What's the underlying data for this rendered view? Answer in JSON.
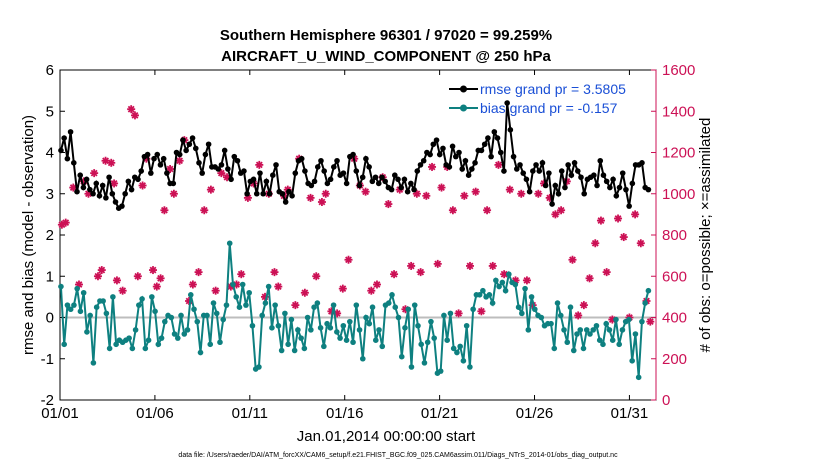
{
  "chart_data": {
    "type": "line",
    "title": "Southern Hemisphere 96301 / 97020 = 99.259%",
    "subtitle": "AIRCRAFT_U_WIND_COMPONENT @ 250 hPa",
    "xlabel": "Jan.01,2014 00:00:00 start",
    "ylabel_left": "rmse and bias (model - observation)",
    "ylabel_right": "# of obs: o=possible; ×=assimilated",
    "xlim": [
      0,
      31.4
    ],
    "ylim_left": [
      -2,
      6
    ],
    "ylim_right": [
      0,
      1600
    ],
    "x_tick_values": [
      0,
      5,
      10,
      15,
      20,
      25,
      30
    ],
    "x_tick_labels": [
      "01/01",
      "01/06",
      "01/11",
      "01/16",
      "01/21",
      "01/26",
      "01/31"
    ],
    "y_left_ticks": [
      "-2",
      "-1",
      "0",
      "1",
      "2",
      "3",
      "4",
      "5",
      "6"
    ],
    "y_right_ticks": [
      "0",
      "200",
      "400",
      "600",
      "800",
      "1000",
      "1200",
      "1400",
      "1600"
    ],
    "footer": "data file: /Users/raeder/DAI/ATM_forcXX/CAM6_setup/f.e21.FHIST_BGC.f09_025.CAM6assim.011/Diags_NTrS_2014-01/obs_diag_output.nc",
    "colors": {
      "rmse": "#000000",
      "bias": "#0e8080",
      "obs": "#cc1155",
      "zero_line": "#bdbdbd"
    },
    "series": [
      {
        "name": "rmse grand pr = 3.5805",
        "axis": "left",
        "values": [
          4.05,
          4.35,
          3.85,
          4.5,
          3.75,
          3.05,
          3.45,
          3.15,
          3.35,
          3.1,
          3.0,
          3.25,
          2.95,
          3.2,
          2.9,
          3.4,
          3.0,
          2.8,
          2.65,
          2.7,
          3.0,
          3.3,
          3.1,
          3.4,
          3.35,
          3.55,
          3.9,
          3.95,
          3.5,
          3.85,
          3.95,
          3.7,
          3.85,
          3.5,
          3.25,
          3.25,
          4.0,
          3.95,
          4.3,
          4.05,
          4.2,
          4.35,
          4.1,
          3.75,
          3.5,
          3.95,
          4.2,
          3.65,
          3.65,
          3.6,
          3.7,
          4.05,
          3.6,
          3.35,
          3.9,
          3.8,
          3.5,
          3.55,
          3.0,
          3.3,
          3.35,
          3.0,
          3.5,
          3.0,
          3.3,
          3.0,
          3.45,
          3.7,
          3.05,
          3.0,
          2.8,
          3.05,
          2.95,
          3.5,
          3.8,
          3.85,
          3.55,
          3.25,
          3.2,
          3.3,
          3.65,
          3.8,
          3.55,
          3.25,
          3.35,
          3.65,
          3.8,
          3.45,
          3.5,
          3.25,
          3.9,
          3.95,
          3.55,
          3.2,
          3.4,
          3.85,
          3.65,
          3.3,
          3.4,
          3.25,
          3.4,
          3.3,
          3.15,
          3.1,
          3.45,
          3.35,
          3.15,
          3.35,
          3.05,
          3.25,
          3.1,
          3.55,
          3.7,
          3.8,
          4.0,
          3.95,
          4.2,
          4.3,
          3.95,
          4.1,
          3.7,
          3.65,
          4.15,
          3.9,
          4.0,
          3.6,
          3.8,
          3.45,
          3.6,
          3.75,
          4.05,
          4.05,
          4.2,
          4.35,
          3.9,
          4.5,
          4.35,
          4.0,
          3.55,
          5.2,
          4.55,
          3.9,
          3.6,
          3.7,
          3.5,
          3.35,
          3.05,
          3.55,
          3.7,
          3.55,
          3.75,
          3.2,
          3.5,
          2.75,
          3.2,
          3.0,
          3.55,
          3.15,
          3.7,
          3.45,
          3.75,
          3.55,
          3.4,
          3.0,
          3.35,
          3.4,
          3.45,
          3.2,
          3.8,
          3.45,
          3.3,
          3.15,
          3.35,
          2.95,
          3.15,
          3.5,
          3.1,
          2.7,
          3.25,
          3.7,
          3.7,
          3.75,
          3.15,
          3.1
        ]
      },
      {
        "name": "bias grand pr = -0.157",
        "axis": "left",
        "values": [
          0.75,
          -0.65,
          0.3,
          0.2,
          0.3,
          0.7,
          0.15,
          0.6,
          -0.35,
          0.05,
          -1.1,
          0.25,
          0.4,
          0.4,
          0.1,
          -0.75,
          0.5,
          -0.65,
          -0.55,
          -0.6,
          -0.55,
          -0.5,
          -0.75,
          -0.3,
          0.3,
          0.45,
          -0.75,
          -0.55,
          0.5,
          0.15,
          -0.65,
          -0.5,
          -0.1,
          0.05,
          0.0,
          -0.4,
          -0.5,
          0.05,
          -0.4,
          -0.3,
          0.55,
          0.2,
          -0.1,
          -0.85,
          0.05,
          0.05,
          -0.65,
          0.35,
          0.1,
          -0.6,
          -0.05,
          0.3,
          1.8,
          0.8,
          0.5,
          0.25,
          0.8,
          0.3,
          0.6,
          -0.2,
          -1.25,
          -1.2,
          0.05,
          0.35,
          0.75,
          -0.25,
          0.3,
          -0.2,
          -0.8,
          0.1,
          -0.65,
          -0.05,
          -0.8,
          -0.3,
          -0.5,
          -0.75,
          0.0,
          -0.3,
          0.25,
          0.35,
          -0.25,
          -0.7,
          -0.15,
          -0.25,
          0.3,
          -0.35,
          -0.5,
          -0.2,
          -0.55,
          -0.1,
          -0.6,
          0.3,
          -0.3,
          -1.0,
          0.0,
          -0.15,
          0.25,
          -0.55,
          -0.3,
          -0.7,
          0.3,
          0.35,
          0.55,
          0.25,
          0.0,
          -0.95,
          -0.25,
          0.2,
          -1.2,
          0.3,
          -0.2,
          -0.65,
          -1.1,
          -0.6,
          -0.1,
          -0.5,
          -1.35,
          -1.3,
          0.05,
          -0.55,
          0.1,
          -0.75,
          -0.85,
          -0.7,
          -1.05,
          -0.2,
          -1.2,
          0.2,
          0.55,
          0.55,
          0.65,
          0.5,
          0.55,
          0.35,
          0.9,
          0.75,
          0.85,
          0.65,
          1.05,
          0.85,
          0.8,
          0.25,
          0.1,
          0.7,
          -0.3,
          0.5,
          0.2,
          0.05,
          0.0,
          -0.2,
          -0.15,
          -0.15,
          -0.75,
          0.35,
          0.05,
          -0.3,
          -0.6,
          0.25,
          -0.8,
          -0.4,
          -0.3,
          -0.75,
          -0.3,
          -0.4,
          -0.3,
          -0.2,
          -0.55,
          -0.65,
          -0.15,
          -0.3,
          -0.55,
          -0.05,
          -0.65,
          -0.3,
          -0.1,
          -0.05,
          -1.05,
          -0.4,
          -1.45,
          -0.1,
          0.35,
          0.65
        ]
      }
    ],
    "obs_counts": {
      "axis": "right",
      "x": [
        0.1,
        0.3,
        0.7,
        1.0,
        1.25,
        1.5,
        1.8,
        2.0,
        2.2,
        2.4,
        2.7,
        2.85,
        3.0,
        3.3,
        3.75,
        3.95,
        4.1,
        4.35,
        4.55,
        4.9,
        5.1,
        5.3,
        5.5,
        5.8,
        6.0,
        6.3,
        6.55,
        6.8,
        7.0,
        7.3,
        7.6,
        7.95,
        8.2,
        8.5,
        8.8,
        9.0,
        9.3,
        9.55,
        9.9,
        10.2,
        10.5,
        10.8,
        11.0,
        11.3,
        11.5,
        11.8,
        12.0,
        12.4,
        12.6,
        12.9,
        13.2,
        13.5,
        13.8,
        14.0,
        14.3,
        14.6,
        14.9,
        15.2,
        15.5,
        15.8,
        16.1,
        16.4,
        16.7,
        17.0,
        17.3,
        17.6,
        17.9,
        18.2,
        18.5,
        18.8,
        19.0,
        19.3,
        19.6,
        19.9,
        20.1,
        20.4,
        20.7,
        21.0,
        21.3,
        21.6,
        21.9,
        22.2,
        22.5,
        22.8,
        23.1,
        23.4,
        23.7,
        24.0,
        24.3,
        24.6,
        24.9,
        25.2,
        25.5,
        25.8,
        26.1,
        26.4,
        26.7,
        27.0,
        27.3,
        27.6,
        27.9,
        28.2,
        28.5,
        28.8,
        29.1,
        29.4,
        29.7,
        30.0,
        30.3,
        30.6,
        30.9,
        31.1
      ],
      "values": [
        850,
        860,
        1030,
        560,
        1060,
        1000,
        1100,
        600,
        630,
        1160,
        1150,
        1050,
        580,
        530,
        1410,
        1380,
        600,
        1040,
        1170,
        630,
        550,
        590,
        920,
        1120,
        1000,
        1160,
        1260,
        480,
        560,
        620,
        920,
        1020,
        530,
        1100,
        1080,
        550,
        560,
        610,
        980,
        1050,
        1140,
        500,
        1000,
        620,
        550,
        990,
        1020,
        460,
        1170,
        520,
        980,
        600,
        960,
        1000,
        430,
        420,
        540,
        680,
        1170,
        1040,
        1010,
        530,
        560,
        1080,
        950,
        610,
        1020,
        440,
        650,
        1000,
        620,
        990,
        1130,
        660,
        1030,
        1130,
        920,
        420,
        990,
        650,
        1010,
        430,
        920,
        650,
        1140,
        610,
        1020,
        580,
        1000,
        580,
        460,
        1000,
        1050,
        980,
        900,
        920,
        1060,
        680,
        410,
        460,
        590,
        760,
        870,
        620,
        390,
        880,
        790,
        400,
        900,
        760,
        480,
        380
      ]
    }
  }
}
